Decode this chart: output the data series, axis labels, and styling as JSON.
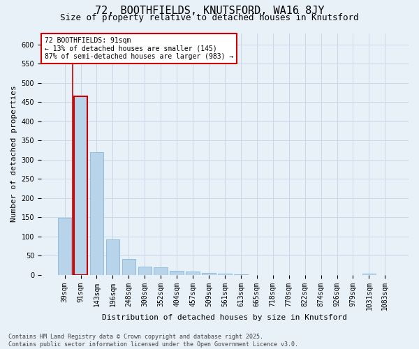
{
  "title_line1": "72, BOOTHFIELDS, KNUTSFORD, WA16 8JY",
  "title_line2": "Size of property relative to detached houses in Knutsford",
  "xlabel": "Distribution of detached houses by size in Knutsford",
  "ylabel": "Number of detached properties",
  "categories": [
    "39sqm",
    "91sqm",
    "143sqm",
    "196sqm",
    "248sqm",
    "300sqm",
    "352sqm",
    "404sqm",
    "457sqm",
    "509sqm",
    "561sqm",
    "613sqm",
    "665sqm",
    "718sqm",
    "770sqm",
    "822sqm",
    "874sqm",
    "926sqm",
    "979sqm",
    "1031sqm",
    "1083sqm"
  ],
  "values": [
    148,
    465,
    320,
    93,
    42,
    21,
    20,
    11,
    9,
    5,
    3,
    1,
    0,
    0,
    0,
    0,
    0,
    0,
    0,
    2,
    0
  ],
  "bar_color": "#b8d4ea",
  "bar_edge_color": "#7aafd4",
  "highlight_bar_index": 1,
  "highlight_edge_color": "#cc0000",
  "ylim": [
    0,
    630
  ],
  "yticks": [
    0,
    50,
    100,
    150,
    200,
    250,
    300,
    350,
    400,
    450,
    500,
    550,
    600
  ],
  "grid_color": "#c8d8e8",
  "background_color": "#e8f0f8",
  "annotation_text": "72 BOOTHFIELDS: 91sqm\n← 13% of detached houses are smaller (145)\n87% of semi-detached houses are larger (983) →",
  "annotation_box_facecolor": "#ffffff",
  "annotation_box_edgecolor": "#cc0000",
  "footnote": "Contains HM Land Registry data © Crown copyright and database right 2025.\nContains public sector information licensed under the Open Government Licence v3.0.",
  "title_fontsize": 11,
  "subtitle_fontsize": 9,
  "axis_label_fontsize": 8,
  "tick_fontsize": 7,
  "annotation_fontsize": 7,
  "footnote_fontsize": 6
}
